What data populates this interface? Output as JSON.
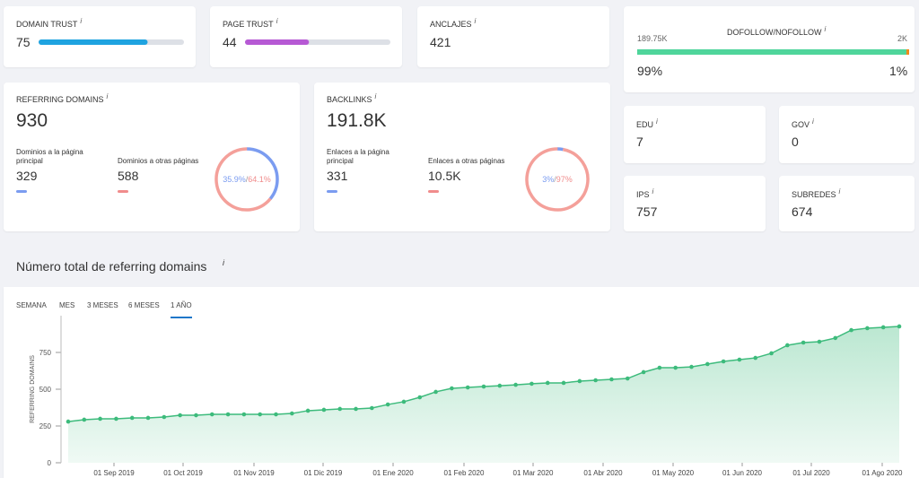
{
  "info_icon": "i",
  "cards": {
    "domain_trust": {
      "label": "DOMAIN TRUST",
      "value": 75
    },
    "page_trust": {
      "label": "PAGE TRUST",
      "value": 44
    },
    "anclajes": {
      "label": "ANCLAJES",
      "value": 421
    },
    "dofollow": {
      "label": "DOFOLLOW/NOFOLLOW",
      "dofollow_count": "189.75K",
      "nofollow_count": "2K",
      "dofollow_share": {
        "value": 99,
        "label": "99%"
      },
      "nofollow_share": {
        "value": 1,
        "label": "1%"
      }
    },
    "referring_domains": {
      "label": "REFERRING DOMAINS",
      "value": 930,
      "main": {
        "label": "Dominios a la página principal",
        "value": 329
      },
      "other": {
        "label": "Dominios a otras páginas",
        "value": 588
      },
      "main_share": {
        "value": 35.9,
        "label": "35.9%"
      },
      "separator": "/",
      "other_share": {
        "value": 64.1,
        "label": "64.1%"
      }
    },
    "backlinks": {
      "label": "BACKLINKS",
      "value": "191.8K",
      "main": {
        "label": "Enlaces a la página principal",
        "value": 331
      },
      "other": {
        "label": "Enlaces a otras páginas",
        "value": "10.5K"
      },
      "main_share": {
        "value": 3,
        "label": "3%"
      },
      "separator": "/",
      "other_share": {
        "value": 97,
        "label": "97%"
      }
    },
    "edu": {
      "label": "EDU",
      "value": 7
    },
    "gov": {
      "label": "GOV",
      "value": 0
    },
    "ips": {
      "label": "IPS",
      "value": 757
    },
    "subredes": {
      "label": "SUBREDES",
      "value": 674
    }
  },
  "chart": {
    "title": "Número total de referring domains",
    "tabs": [
      "SEMANA",
      "MES",
      "3 MESES",
      "6 MESES",
      "1 AÑO"
    ],
    "active_tab": 4,
    "type": "area",
    "color": "#3dbb7c",
    "y_label": "REFERRING DOMAINS",
    "values": [
      280,
      293,
      299,
      299,
      305,
      305,
      311,
      323,
      323,
      329,
      329,
      329,
      329,
      329,
      335,
      354,
      360,
      366,
      366,
      372,
      396,
      415,
      445,
      482,
      506,
      512,
      518,
      524,
      530,
      537,
      543,
      543,
      555,
      561,
      567,
      573,
      616,
      646,
      646,
      652,
      671,
      689,
      701,
      713,
      744,
      799,
      817,
      823,
      848,
      902,
      915,
      921,
      927
    ],
    "ylim": [
      0,
      1000
    ],
    "yticks": [
      0,
      250,
      500,
      750
    ],
    "xtick_labels": [
      "01 Sep 2019",
      "01 Oct 2019",
      "01 Nov 2019",
      "01 Dic 2019",
      "01 Ene 2020",
      "01 Feb 2020",
      "01 Mar 2020",
      "01 Abr 2020",
      "01 May 2020",
      "01 Jun 2020",
      "01 Jul 2020",
      "01 Ago 2020"
    ]
  }
}
